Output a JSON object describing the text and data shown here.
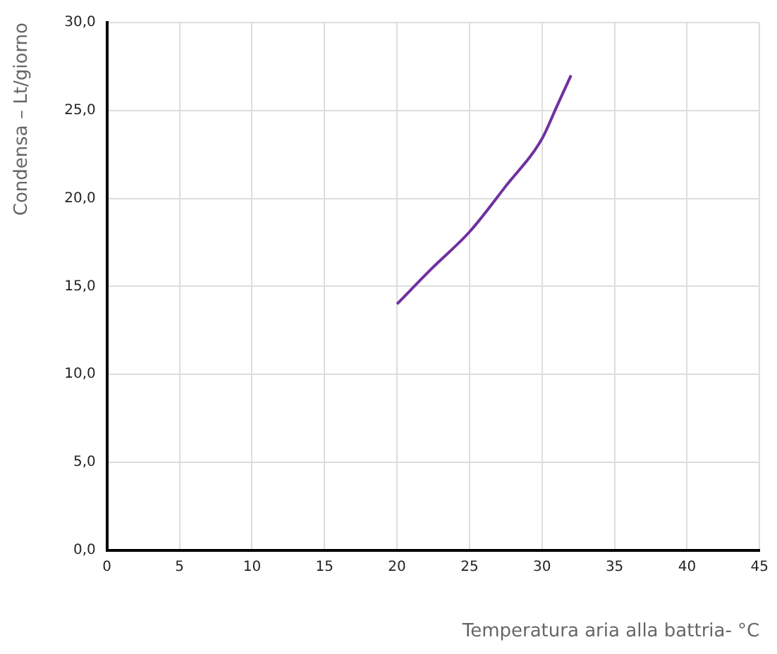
{
  "chart_data": {
    "type": "line",
    "xlabel": "Temperatura aria alla battria- °C",
    "ylabel": "Condensa – Lt/giorno",
    "series": [
      {
        "color": "#7030a0",
        "x": [
          20,
          22.5,
          25,
          27.5,
          30,
          31,
          32
        ],
        "values": [
          14.0,
          16.1,
          18.1,
          20.7,
          23.4,
          25.2,
          27.0
        ]
      }
    ],
    "xlim": [
      0,
      45
    ],
    "xticks": [
      0,
      5,
      10,
      15,
      20,
      25,
      30,
      35,
      40,
      45
    ],
    "ylim": [
      0,
      30
    ],
    "yticks": [
      {
        "value": 0,
        "label": "0,0"
      },
      {
        "value": 5,
        "label": "5,0"
      },
      {
        "value": 10,
        "label": "10,0"
      },
      {
        "value": 15,
        "label": "15,0"
      },
      {
        "value": 20,
        "label": "20,0"
      },
      {
        "value": 25,
        "label": "25,0"
      },
      {
        "value": 30,
        "label": "30,0"
      }
    ],
    "grid": true,
    "legend": false,
    "marker": "none",
    "line_style": "solid"
  }
}
